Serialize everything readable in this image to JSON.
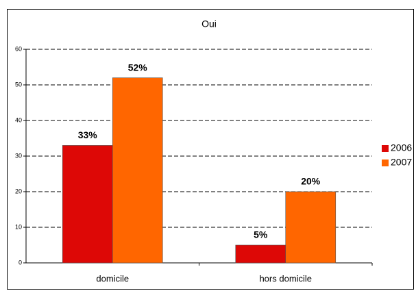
{
  "chart_data": {
    "type": "bar",
    "title": "Oui",
    "categories": [
      "domicile",
      "hors domicile"
    ],
    "series": [
      {
        "name": "2006",
        "color": "#dd0806",
        "values": [
          33,
          5
        ],
        "value_labels": [
          "33%",
          "5%"
        ]
      },
      {
        "name": "2007",
        "color": "#ff6600",
        "values": [
          52,
          20
        ],
        "value_labels": [
          "52%",
          "20%"
        ]
      }
    ],
    "ylim": [
      0,
      60
    ],
    "yticks": [
      0,
      10,
      20,
      30,
      40,
      50,
      60
    ],
    "grid": true,
    "legend": "right"
  }
}
